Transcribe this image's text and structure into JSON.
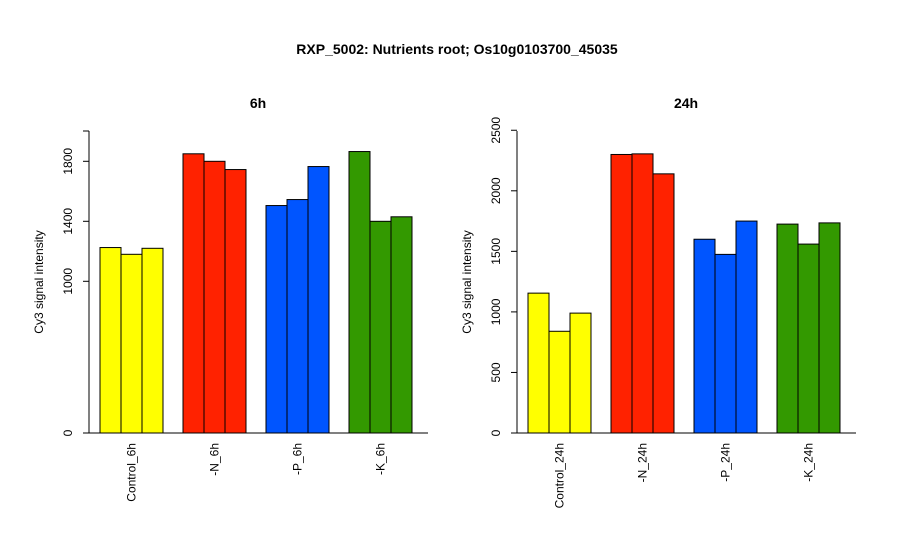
{
  "title": "RXP_5002: Nutrients root; Os10g0103700_45035",
  "chart_data": [
    {
      "type": "bar",
      "title": "6h",
      "ylabel": "Cy3 signal intensity",
      "ylim": [
        0,
        2000
      ],
      "yticks": [
        0,
        1000,
        1400,
        1800
      ],
      "ybreak": true,
      "categories": [
        "Control_6h",
        "-N_6h",
        "-P_6h",
        "-K_6h"
      ],
      "colors": [
        "#ffff00",
        "#ff2200",
        "#0055ff",
        "#339900"
      ],
      "groups": [
        {
          "label": "Control_6h",
          "values": [
            1225,
            1180,
            1220
          ]
        },
        {
          "label": "-N_6h",
          "values": [
            1850,
            1800,
            1745
          ]
        },
        {
          "label": "-P_6h",
          "values": [
            1505,
            1545,
            1765
          ]
        },
        {
          "label": "-K_6h",
          "values": [
            1865,
            1400,
            1430
          ]
        }
      ]
    },
    {
      "type": "bar",
      "title": "24h",
      "ylabel": "Cy3 signal intensity",
      "ylim": [
        0,
        2500
      ],
      "yticks": [
        0,
        500,
        1000,
        1500,
        2000,
        2500
      ],
      "ybreak": false,
      "categories": [
        "Control_24h",
        "-N_24h",
        "-P_24h",
        "-K_24h"
      ],
      "colors": [
        "#ffff00",
        "#ff2200",
        "#0055ff",
        "#339900"
      ],
      "groups": [
        {
          "label": "Control_24h",
          "values": [
            1155,
            840,
            990
          ]
        },
        {
          "label": "-N_24h",
          "values": [
            2300,
            2305,
            2140
          ]
        },
        {
          "label": "-P_24h",
          "values": [
            1600,
            1475,
            1750
          ]
        },
        {
          "label": "-K_24h",
          "values": [
            1725,
            1560,
            1735
          ]
        }
      ]
    }
  ]
}
